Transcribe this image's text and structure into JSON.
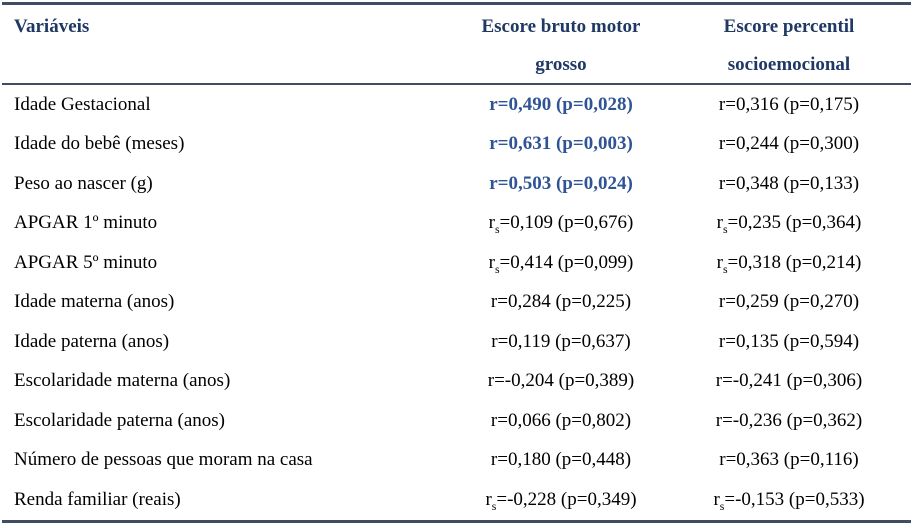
{
  "colors": {
    "header_text": "#1F3864",
    "significant_value": "#2F5496",
    "body_text": "#000000",
    "border": "#3E4D63",
    "background": "#FFFFFF"
  },
  "table": {
    "header": {
      "variables": "Variáveis",
      "motor_line1": "Escore bruto motor",
      "motor_line2": "grosso",
      "social_line1": "Escore percentil",
      "social_line2": "socioemocional"
    },
    "rows": [
      {
        "label": "Idade Gestacional",
        "motor_sig": "true",
        "motor": {
          "pre": "r",
          "sub": "",
          "post": "=0,490 (p=0,028)"
        },
        "social": {
          "pre": "r",
          "sub": "",
          "post": "=0,316 (p=0,175)"
        }
      },
      {
        "label": "Idade do bebê (meses)",
        "motor_sig": "true",
        "motor": {
          "pre": "r",
          "sub": "",
          "post": "=0,631 (p=0,003)"
        },
        "social": {
          "pre": "r",
          "sub": "",
          "post": "=0,244 (p=0,300)"
        }
      },
      {
        "label": "Peso ao nascer (g)",
        "motor_sig": "true",
        "motor": {
          "pre": "r",
          "sub": "",
          "post": "=0,503 (p=0,024)"
        },
        "social": {
          "pre": "r",
          "sub": "",
          "post": "=0,348 (p=0,133)"
        }
      },
      {
        "label": "APGAR 1º minuto",
        "motor_sig": "false",
        "motor": {
          "pre": "r",
          "sub": "s",
          "post": "=0,109 (p=0,676)"
        },
        "social": {
          "pre": "r",
          "sub": "s",
          "post": "=0,235 (p=0,364)"
        }
      },
      {
        "label": "APGAR 5º minuto",
        "motor_sig": "false",
        "motor": {
          "pre": "r",
          "sub": "s",
          "post": "=0,414 (p=0,099)"
        },
        "social": {
          "pre": "r",
          "sub": "s",
          "post": "=0,318 (p=0,214)"
        }
      },
      {
        "label": "Idade materna (anos)",
        "motor_sig": "false",
        "motor": {
          "pre": "r",
          "sub": "",
          "post": "=0,284 (p=0,225)"
        },
        "social": {
          "pre": "r",
          "sub": "",
          "post": "=0,259 (p=0,270)"
        }
      },
      {
        "label": "Idade paterna (anos)",
        "motor_sig": "false",
        "motor": {
          "pre": "r",
          "sub": "",
          "post": "=0,119 (p=0,637)"
        },
        "social": {
          "pre": "r",
          "sub": "",
          "post": "=0,135 (p=0,594)"
        }
      },
      {
        "label": "Escolaridade materna (anos)",
        "motor_sig": "false",
        "motor": {
          "pre": "r",
          "sub": "",
          "post": "=-0,204 (p=0,389)"
        },
        "social": {
          "pre": "r",
          "sub": "",
          "post": "=-0,241 (p=0,306)"
        }
      },
      {
        "label": "Escolaridade paterna (anos)",
        "motor_sig": "false",
        "motor": {
          "pre": "r",
          "sub": "",
          "post": "=0,066 (p=0,802)"
        },
        "social": {
          "pre": "r",
          "sub": "",
          "post": "=-0,236 (p=0,362)"
        }
      },
      {
        "label": "Número de pessoas que moram na casa",
        "motor_sig": "false",
        "motor": {
          "pre": "r",
          "sub": "",
          "post": "=0,180 (p=0,448)"
        },
        "social": {
          "pre": "r",
          "sub": "",
          "post": "=0,363 (p=0,116)"
        }
      },
      {
        "label": "Renda familiar (reais)",
        "motor_sig": "false",
        "motor": {
          "pre": "r",
          "sub": "s",
          "post": "=-0,228 (p=0,349)"
        },
        "social": {
          "pre": "r",
          "sub": "s",
          "post": "=-0,153 (p=0,533)"
        }
      }
    ]
  }
}
